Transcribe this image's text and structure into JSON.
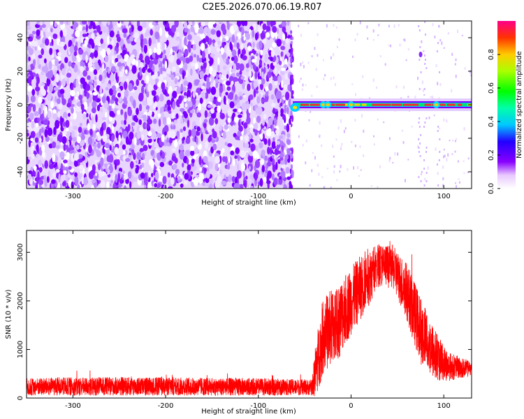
{
  "figure": {
    "title": "C2E5.2026.070.06.19.R07"
  },
  "chart_data": [
    {
      "type": "heatmap",
      "xlabel": "Height of straight line (km)",
      "ylabel": "Frequency (Hz)",
      "xlim": [
        -350,
        130
      ],
      "ylim": [
        -50,
        50
      ],
      "x_ticks": [
        -300,
        -200,
        -100,
        0,
        100
      ],
      "y_ticks": [
        -40,
        -20,
        0,
        20,
        40
      ],
      "colorbar": {
        "label": "Normalized spectral amplitude",
        "range": [
          0,
          1
        ],
        "ticks": [
          0.0,
          0.2,
          0.4,
          0.6,
          0.8
        ]
      },
      "noise_region_x": [
        -350,
        -65
      ],
      "signal_line": {
        "x_start": -65,
        "x_end": 130,
        "frequency": 0
      }
    },
    {
      "type": "line",
      "xlabel": "Height of straight line (km)",
      "ylabel": "SNR (10 * v/v)",
      "xlim": [
        -350,
        130
      ],
      "ylim": [
        0,
        3450
      ],
      "x_ticks": [
        -300,
        -200,
        -100,
        0,
        100
      ],
      "y_ticks": [
        0,
        1000,
        2000,
        3000
      ],
      "color": "#ff0000",
      "envelope": {
        "x": [
          -350,
          -300,
          -200,
          -100,
          -42,
          -38,
          -30,
          -15,
          0,
          15,
          30,
          45,
          60,
          75,
          90,
          105,
          130
        ],
        "mid": [
          230,
          240,
          240,
          230,
          220,
          600,
          1300,
          1550,
          2000,
          2400,
          2750,
          2700,
          2200,
          1400,
          900,
          650,
          600
        ],
        "amp": [
          180,
          190,
          190,
          180,
          160,
          600,
          800,
          800,
          700,
          650,
          450,
          450,
          600,
          700,
          550,
          300,
          150
        ]
      }
    }
  ]
}
